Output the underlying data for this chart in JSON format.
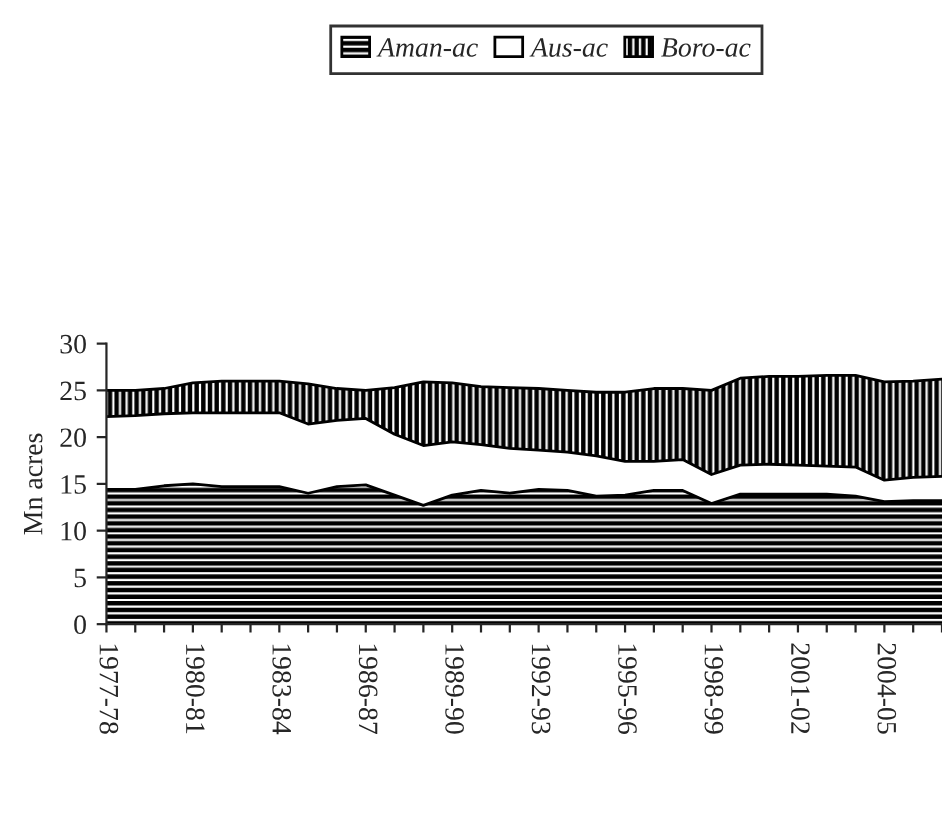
{
  "chart_data": {
    "type": "area",
    "stacked": true,
    "ylabel": "Mn acres",
    "categories": [
      "1977-78",
      null,
      null,
      "1980-81",
      null,
      null,
      "1983-84",
      null,
      null,
      "1986-87",
      null,
      null,
      "1989-90",
      null,
      null,
      "1992-93",
      null,
      null,
      "1995-96",
      null,
      null,
      "1998-99",
      null,
      null,
      "2001-02",
      null,
      null,
      "2004-05",
      null,
      null
    ],
    "series": [
      {
        "name": "Aman-ac",
        "color": "#000000",
        "values": [
          14.4,
          14.4,
          14.8,
          15.0,
          14.7,
          14.7,
          14.7,
          14.0,
          14.7,
          14.9,
          13.8,
          12.7,
          13.8,
          14.3,
          14.0,
          14.4,
          14.3,
          13.7,
          13.8,
          14.3,
          14.3,
          12.9,
          13.9,
          13.9,
          13.9,
          13.9,
          13.7,
          13.1,
          13.2,
          13.2
        ]
      },
      {
        "name": "Aus-ac",
        "color": "#ffffff",
        "values": [
          7.8,
          7.9,
          7.7,
          7.6,
          7.9,
          7.9,
          7.9,
          7.4,
          7.1,
          7.1,
          6.5,
          6.4,
          5.7,
          4.9,
          4.8,
          4.2,
          4.1,
          4.3,
          3.6,
          3.1,
          3.3,
          3.1,
          3.1,
          3.2,
          3.1,
          3.0,
          3.1,
          2.3,
          2.5,
          2.6
        ]
      },
      {
        "name": "Boro-ac",
        "color": "#000000",
        "values": [
          2.8,
          2.7,
          2.7,
          3.2,
          3.4,
          3.4,
          3.4,
          4.3,
          3.4,
          3.0,
          5.0,
          6.8,
          6.3,
          6.2,
          6.5,
          6.6,
          6.6,
          6.8,
          7.4,
          7.8,
          7.6,
          9.0,
          9.3,
          9.4,
          9.5,
          9.7,
          9.8,
          10.5,
          10.3,
          10.4
        ]
      }
    ],
    "ylim": [
      0,
      30
    ],
    "yticks": [
      0,
      5,
      10,
      15,
      20,
      25,
      30
    ],
    "grid": false,
    "legend": "top"
  }
}
